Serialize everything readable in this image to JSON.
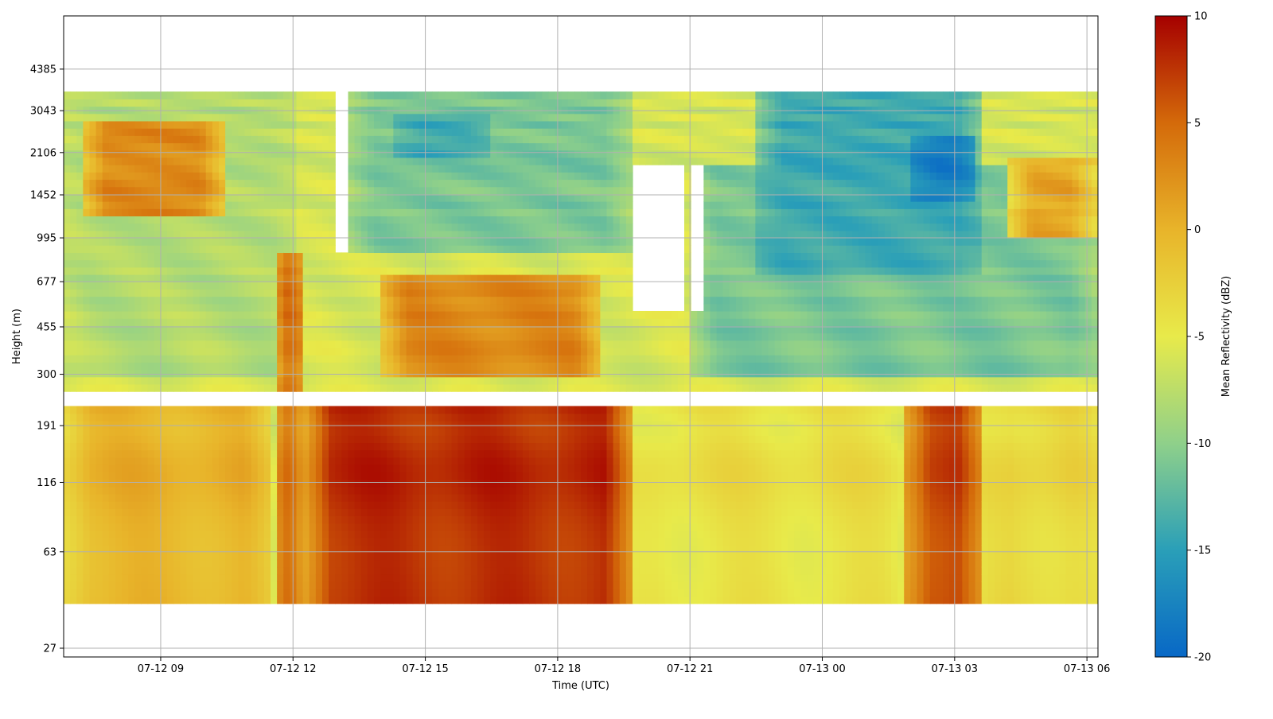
{
  "chart_data": {
    "type": "heatmap",
    "title": "",
    "xlabel": "Time (UTC)",
    "ylabel": "Height (m)",
    "x_range": [
      "07-12 06:48",
      "07-13 06:15"
    ],
    "x_ticks": [
      "07-12 09",
      "07-12 12",
      "07-12 15",
      "07-12 18",
      "07-12 21",
      "07-13 00",
      "07-13 03",
      "07-13 06"
    ],
    "y_scale": "log",
    "y_range": [
      25,
      7000
    ],
    "y_ticks": [
      27,
      63,
      116,
      191,
      300,
      455,
      677,
      995,
      1452,
      2106,
      3043,
      4385
    ],
    "grid": true,
    "colorbar": {
      "label": "Mean Reflectivity (dBZ)",
      "range": [
        -20,
        10
      ],
      "ticks": [
        -20,
        -15,
        -10,
        -5,
        0,
        5,
        10
      ],
      "colormap": [
        "#0868c6",
        "#2a9fb8",
        "#8fd08a",
        "#e8ea4a",
        "#e8b42a",
        "#d46a0a",
        "#a50000"
      ]
    },
    "no_data_bands": [
      {
        "height_range": [
          228,
          258
        ],
        "time_range": [
          "07-12 06:48",
          "07-13 06:15"
        ]
      },
      {
        "height_range": [
          865,
          4385
        ],
        "time_range": [
          "07-12 12:55",
          "07-12 13:15"
        ]
      },
      {
        "height_range": [
          520,
          1900
        ],
        "time_range": [
          "07-12 19:40",
          "07-12 20:50"
        ]
      },
      {
        "height_range": [
          520,
          1850
        ],
        "time_range": [
          "07-12 21:00",
          "07-12 21:20"
        ]
      }
    ],
    "regions": [
      {
        "time": [
          "07-12 06:48",
          "07-12 12:05"
        ],
        "height": [
          300,
          3500
        ],
        "dbz": -8
      },
      {
        "time": [
          "07-12 07:10",
          "07-12 10:30"
        ],
        "height": [
          1200,
          2700
        ],
        "dbz": 3
      },
      {
        "time": [
          "07-12 06:48",
          "07-12 11:30"
        ],
        "height": [
          40,
          220
        ],
        "dbz": 0
      },
      {
        "time": [
          "07-12 11:35",
          "07-12 12:15"
        ],
        "height": [
          40,
          900
        ],
        "dbz": 8
      },
      {
        "time": [
          "07-12 12:15",
          "07-12 19:40"
        ],
        "height": [
          40,
          220
        ],
        "dbz": 8
      },
      {
        "time": [
          "07-12 14:00",
          "07-12 19:00"
        ],
        "height": [
          300,
          700
        ],
        "dbz": 3
      },
      {
        "time": [
          "07-12 13:15",
          "07-12 19:40"
        ],
        "height": [
          900,
          4385
        ],
        "dbz": -11
      },
      {
        "time": [
          "07-12 14:20",
          "07-12 16:30"
        ],
        "height": [
          2000,
          3000
        ],
        "dbz": -14
      },
      {
        "time": [
          "07-12 19:40",
          "07-13 02:00"
        ],
        "height": [
          40,
          220
        ],
        "dbz": -4
      },
      {
        "time": [
          "07-12 21:00",
          "07-13 06:15"
        ],
        "height": [
          300,
          1900
        ],
        "dbz": -11
      },
      {
        "time": [
          "07-12 22:30",
          "07-13 03:40"
        ],
        "height": [
          700,
          3800
        ],
        "dbz": -14
      },
      {
        "time": [
          "07-13 02:00",
          "07-13 03:30"
        ],
        "height": [
          1400,
          2500
        ],
        "dbz": -18
      },
      {
        "time": [
          "07-13 01:50",
          "07-13 03:40"
        ],
        "height": [
          40,
          220
        ],
        "dbz": 7
      },
      {
        "time": [
          "07-13 04:10",
          "07-13 06:15"
        ],
        "height": [
          1000,
          2000
        ],
        "dbz": 1
      },
      {
        "time": [
          "07-13 03:40",
          "07-13 06:15"
        ],
        "height": [
          40,
          220
        ],
        "dbz": -3
      }
    ]
  }
}
